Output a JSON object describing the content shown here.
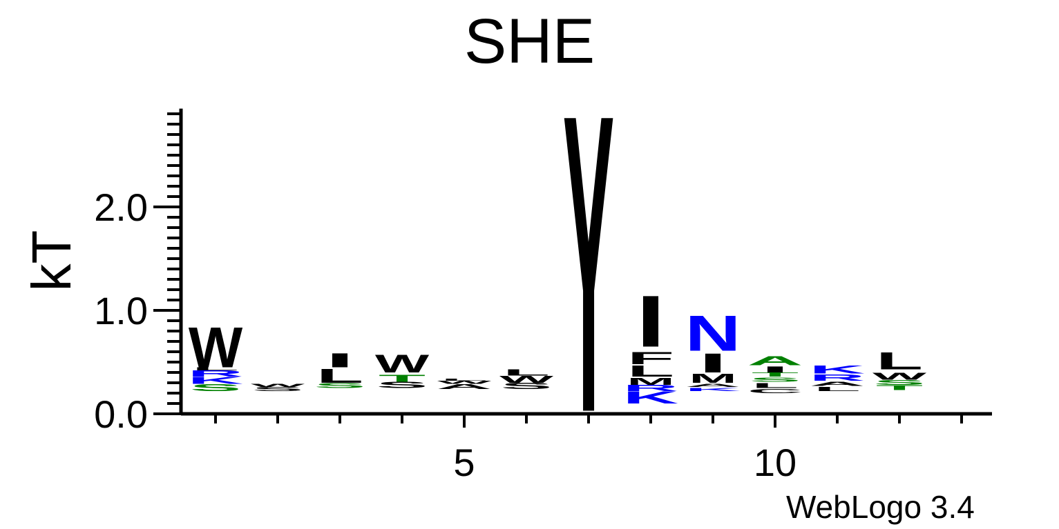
{
  "chart_data": {
    "type": "sequence-logo",
    "title": "SHE",
    "ylabel": "kT",
    "ylim": [
      0,
      2.95
    ],
    "y_ticks": [
      "0.0",
      "1.0",
      "2.0"
    ],
    "y_tick_values": [
      0,
      1,
      2
    ],
    "x_tick_labels": [
      "5",
      "10"
    ],
    "x_tick_values": [
      5,
      10
    ],
    "positions": [
      1,
      2,
      3,
      4,
      5,
      6,
      7,
      8,
      9,
      10,
      11,
      12,
      13
    ],
    "credit": "WebLogo 3.4",
    "colors": {
      "hydrophobic": "#000000",
      "polar": "#008000",
      "basic": "#0000ff",
      "acidic": "#ff0000"
    },
    "stacks": [
      {
        "pos": 1,
        "letters": [
          {
            "aa": "S",
            "bottom": 0.22,
            "top": 0.29,
            "color": "#008000"
          },
          {
            "aa": "K",
            "bottom": 0.29,
            "top": 0.36,
            "color": "#0000ff"
          },
          {
            "aa": "R",
            "bottom": 0.36,
            "top": 0.42,
            "color": "#0000ff"
          },
          {
            "aa": "L",
            "bottom": 0.42,
            "top": 0.45,
            "color": "#000000"
          },
          {
            "aa": "W",
            "bottom": 0.45,
            "top": 0.85,
            "color": "#000000"
          }
        ]
      },
      {
        "pos": 2,
        "letters": [
          {
            "aa": "S",
            "bottom": 0.22,
            "top": 0.26,
            "color": "#000000"
          },
          {
            "aa": "W",
            "bottom": 0.26,
            "top": 0.29,
            "color": "#000000"
          }
        ]
      },
      {
        "pos": 3,
        "letters": [
          {
            "aa": "S",
            "bottom": 0.25,
            "top": 0.3,
            "color": "#008000"
          },
          {
            "aa": "L",
            "bottom": 0.3,
            "top": 0.44,
            "color": "#000000"
          },
          {
            "aa": "I",
            "bottom": 0.45,
            "top": 0.59,
            "color": "#000000"
          }
        ]
      },
      {
        "pos": 4,
        "letters": [
          {
            "aa": "S",
            "bottom": 0.25,
            "top": 0.31,
            "color": "#000000"
          },
          {
            "aa": "T",
            "bottom": 0.31,
            "top": 0.38,
            "color": "#008000"
          },
          {
            "aa": "W",
            "bottom": 0.4,
            "top": 0.58,
            "color": "#000000"
          }
        ]
      },
      {
        "pos": 5,
        "letters": [
          {
            "aa": "A",
            "bottom": 0.24,
            "top": 0.29,
            "color": "#000000"
          },
          {
            "aa": "W",
            "bottom": 0.29,
            "top": 0.32,
            "color": "#000000"
          },
          {
            "aa": "L",
            "bottom": 0.32,
            "top": 0.34,
            "color": "#000000"
          }
        ]
      },
      {
        "pos": 6,
        "letters": [
          {
            "aa": "S",
            "bottom": 0.24,
            "top": 0.3,
            "color": "#000000"
          },
          {
            "aa": "W",
            "bottom": 0.3,
            "top": 0.37,
            "color": "#000000"
          },
          {
            "aa": "L",
            "bottom": 0.37,
            "top": 0.43,
            "color": "#000000"
          }
        ]
      },
      {
        "pos": 7,
        "letters": [
          {
            "aa": "Y",
            "bottom": 0.03,
            "top": 2.99,
            "color": "#000000"
          }
        ]
      },
      {
        "pos": 8,
        "letters": [
          {
            "aa": "K",
            "bottom": 0.1,
            "top": 0.22,
            "color": "#0000ff"
          },
          {
            "aa": "R",
            "bottom": 0.22,
            "top": 0.28,
            "color": "#0000ff"
          },
          {
            "aa": "M",
            "bottom": 0.28,
            "top": 0.35,
            "color": "#000000"
          },
          {
            "aa": "L",
            "bottom": 0.36,
            "top": 0.47,
            "color": "#000000"
          },
          {
            "aa": "F",
            "bottom": 0.48,
            "top": 0.6,
            "color": "#000000"
          },
          {
            "aa": "I",
            "bottom": 0.65,
            "top": 1.16,
            "color": "#000000"
          }
        ]
      },
      {
        "pos": 9,
        "letters": [
          {
            "aa": "K",
            "bottom": 0.22,
            "top": 0.25,
            "color": "#0000ff"
          },
          {
            "aa": "A",
            "bottom": 0.26,
            "top": 0.29,
            "color": "#000000"
          },
          {
            "aa": "M",
            "bottom": 0.3,
            "top": 0.39,
            "color": "#000000"
          },
          {
            "aa": "I",
            "bottom": 0.4,
            "top": 0.59,
            "color": "#000000"
          },
          {
            "aa": "N",
            "bottom": 0.61,
            "top": 0.96,
            "color": "#0000ff"
          }
        ]
      },
      {
        "pos": 10,
        "letters": [
          {
            "aa": "C",
            "bottom": 0.2,
            "top": 0.24,
            "color": "#000000"
          },
          {
            "aa": "L",
            "bottom": 0.25,
            "top": 0.3,
            "color": "#000000"
          },
          {
            "aa": "S",
            "bottom": 0.31,
            "top": 0.35,
            "color": "#008000"
          },
          {
            "aa": "T",
            "bottom": 0.36,
            "top": 0.4,
            "color": "#008000"
          },
          {
            "aa": "I",
            "bottom": 0.4,
            "top": 0.46,
            "color": "#000000"
          },
          {
            "aa": "A",
            "bottom": 0.47,
            "top": 0.56,
            "color": "#008000"
          }
        ]
      },
      {
        "pos": 11,
        "letters": [
          {
            "aa": "L",
            "bottom": 0.22,
            "top": 0.26,
            "color": "#000000"
          },
          {
            "aa": "A",
            "bottom": 0.27,
            "top": 0.31,
            "color": "#000000"
          },
          {
            "aa": "R",
            "bottom": 0.32,
            "top": 0.38,
            "color": "#0000ff"
          },
          {
            "aa": "K",
            "bottom": 0.39,
            "top": 0.47,
            "color": "#0000ff"
          }
        ]
      },
      {
        "pos": 12,
        "letters": [
          {
            "aa": "T",
            "bottom": 0.23,
            "top": 0.28,
            "color": "#008000"
          },
          {
            "aa": "S",
            "bottom": 0.28,
            "top": 0.33,
            "color": "#008000"
          },
          {
            "aa": "W",
            "bottom": 0.33,
            "top": 0.4,
            "color": "#000000"
          },
          {
            "aa": "L",
            "bottom": 0.43,
            "top": 0.6,
            "color": "#000000"
          }
        ]
      }
    ]
  }
}
